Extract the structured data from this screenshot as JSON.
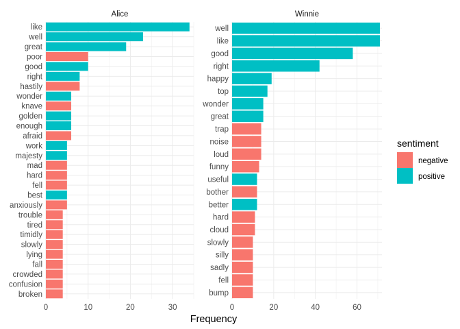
{
  "chart_data": {
    "type": "bar",
    "orientation": "horizontal",
    "xlabel": "Frequency",
    "legend": {
      "title": "sentiment",
      "position": "right",
      "entries": [
        {
          "label": "negative",
          "color": "#F8766D"
        },
        {
          "label": "positive",
          "color": "#00BFC4"
        }
      ]
    },
    "colors": {
      "negative": "#F8766D",
      "positive": "#00BFC4"
    },
    "grid": true,
    "facets": [
      {
        "title": "Alice",
        "xlim": [
          0,
          35
        ],
        "ticks": [
          0,
          10,
          20,
          30
        ],
        "bars": [
          {
            "word": "like",
            "value": 34,
            "sentiment": "positive"
          },
          {
            "word": "well",
            "value": 23,
            "sentiment": "positive"
          },
          {
            "word": "great",
            "value": 19,
            "sentiment": "positive"
          },
          {
            "word": "poor",
            "value": 10,
            "sentiment": "negative"
          },
          {
            "word": "good",
            "value": 10,
            "sentiment": "positive"
          },
          {
            "word": "right",
            "value": 8,
            "sentiment": "positive"
          },
          {
            "word": "hastily",
            "value": 8,
            "sentiment": "negative"
          },
          {
            "word": "wonder",
            "value": 6,
            "sentiment": "positive"
          },
          {
            "word": "knave",
            "value": 6,
            "sentiment": "negative"
          },
          {
            "word": "golden",
            "value": 6,
            "sentiment": "positive"
          },
          {
            "word": "enough",
            "value": 6,
            "sentiment": "positive"
          },
          {
            "word": "afraid",
            "value": 6,
            "sentiment": "negative"
          },
          {
            "word": "work",
            "value": 5,
            "sentiment": "positive"
          },
          {
            "word": "majesty",
            "value": 5,
            "sentiment": "positive"
          },
          {
            "word": "mad",
            "value": 5,
            "sentiment": "negative"
          },
          {
            "word": "hard",
            "value": 5,
            "sentiment": "negative"
          },
          {
            "word": "fell",
            "value": 5,
            "sentiment": "negative"
          },
          {
            "word": "best",
            "value": 5,
            "sentiment": "positive"
          },
          {
            "word": "anxiously",
            "value": 5,
            "sentiment": "negative"
          },
          {
            "word": "trouble",
            "value": 4,
            "sentiment": "negative"
          },
          {
            "word": "tired",
            "value": 4,
            "sentiment": "negative"
          },
          {
            "word": "timidly",
            "value": 4,
            "sentiment": "negative"
          },
          {
            "word": "slowly",
            "value": 4,
            "sentiment": "negative"
          },
          {
            "word": "lying",
            "value": 4,
            "sentiment": "negative"
          },
          {
            "word": "fall",
            "value": 4,
            "sentiment": "negative"
          },
          {
            "word": "crowded",
            "value": 4,
            "sentiment": "negative"
          },
          {
            "word": "confusion",
            "value": 4,
            "sentiment": "negative"
          },
          {
            "word": "broken",
            "value": 4,
            "sentiment": "negative"
          }
        ]
      },
      {
        "title": "Winnie",
        "xlim": [
          0,
          72
        ],
        "ticks": [
          0,
          20,
          40,
          60
        ],
        "bars": [
          {
            "word": "well",
            "value": 71,
            "sentiment": "positive"
          },
          {
            "word": "like",
            "value": 71,
            "sentiment": "positive"
          },
          {
            "word": "good",
            "value": 58,
            "sentiment": "positive"
          },
          {
            "word": "right",
            "value": 42,
            "sentiment": "positive"
          },
          {
            "word": "happy",
            "value": 19,
            "sentiment": "positive"
          },
          {
            "word": "top",
            "value": 17,
            "sentiment": "positive"
          },
          {
            "word": "wonder",
            "value": 15,
            "sentiment": "positive"
          },
          {
            "word": "great",
            "value": 15,
            "sentiment": "positive"
          },
          {
            "word": "trap",
            "value": 14,
            "sentiment": "negative"
          },
          {
            "word": "noise",
            "value": 14,
            "sentiment": "negative"
          },
          {
            "word": "loud",
            "value": 14,
            "sentiment": "negative"
          },
          {
            "word": "funny",
            "value": 13,
            "sentiment": "negative"
          },
          {
            "word": "useful",
            "value": 12,
            "sentiment": "positive"
          },
          {
            "word": "bother",
            "value": 12,
            "sentiment": "negative"
          },
          {
            "word": "better",
            "value": 12,
            "sentiment": "positive"
          },
          {
            "word": "hard",
            "value": 11,
            "sentiment": "negative"
          },
          {
            "word": "cloud",
            "value": 11,
            "sentiment": "negative"
          },
          {
            "word": "slowly",
            "value": 10,
            "sentiment": "negative"
          },
          {
            "word": "silly",
            "value": 10,
            "sentiment": "negative"
          },
          {
            "word": "sadly",
            "value": 10,
            "sentiment": "negative"
          },
          {
            "word": "fell",
            "value": 10,
            "sentiment": "negative"
          },
          {
            "word": "bump",
            "value": 10,
            "sentiment": "negative"
          }
        ]
      }
    ]
  }
}
